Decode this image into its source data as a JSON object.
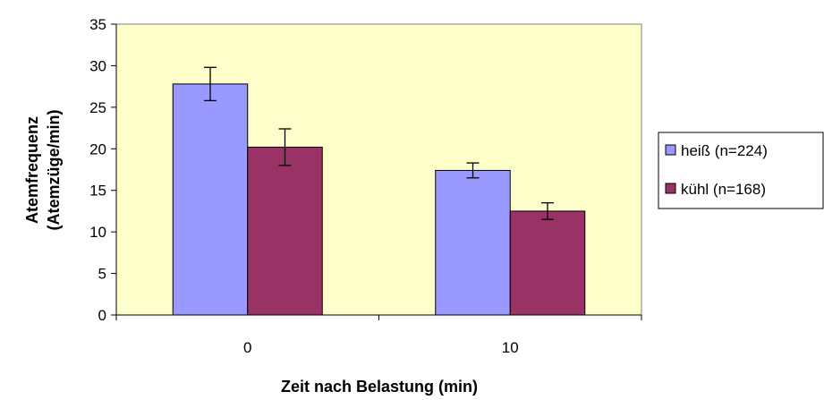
{
  "chart_data": {
    "type": "bar",
    "categories": [
      "0",
      "10"
    ],
    "series": [
      {
        "name": "heiß  (n=224)",
        "values": [
          27.8,
          17.4
        ],
        "errors": [
          2.0,
          0.9
        ],
        "color": "#9999ff"
      },
      {
        "name": "kühl  (n=168)",
        "values": [
          20.2,
          12.5
        ],
        "errors": [
          2.2,
          1.0
        ],
        "color": "#993366"
      }
    ],
    "xlabel": "Zeit nach Belastung (min)",
    "ylabel": [
      "Atemfrequenz",
      "(Atemzüge/min)"
    ],
    "ylim": [
      0,
      35
    ],
    "yticks": [
      0,
      5,
      10,
      15,
      20,
      25,
      30,
      35
    ],
    "plot_background": "#ffffcc",
    "grid": false,
    "legend": "right"
  }
}
